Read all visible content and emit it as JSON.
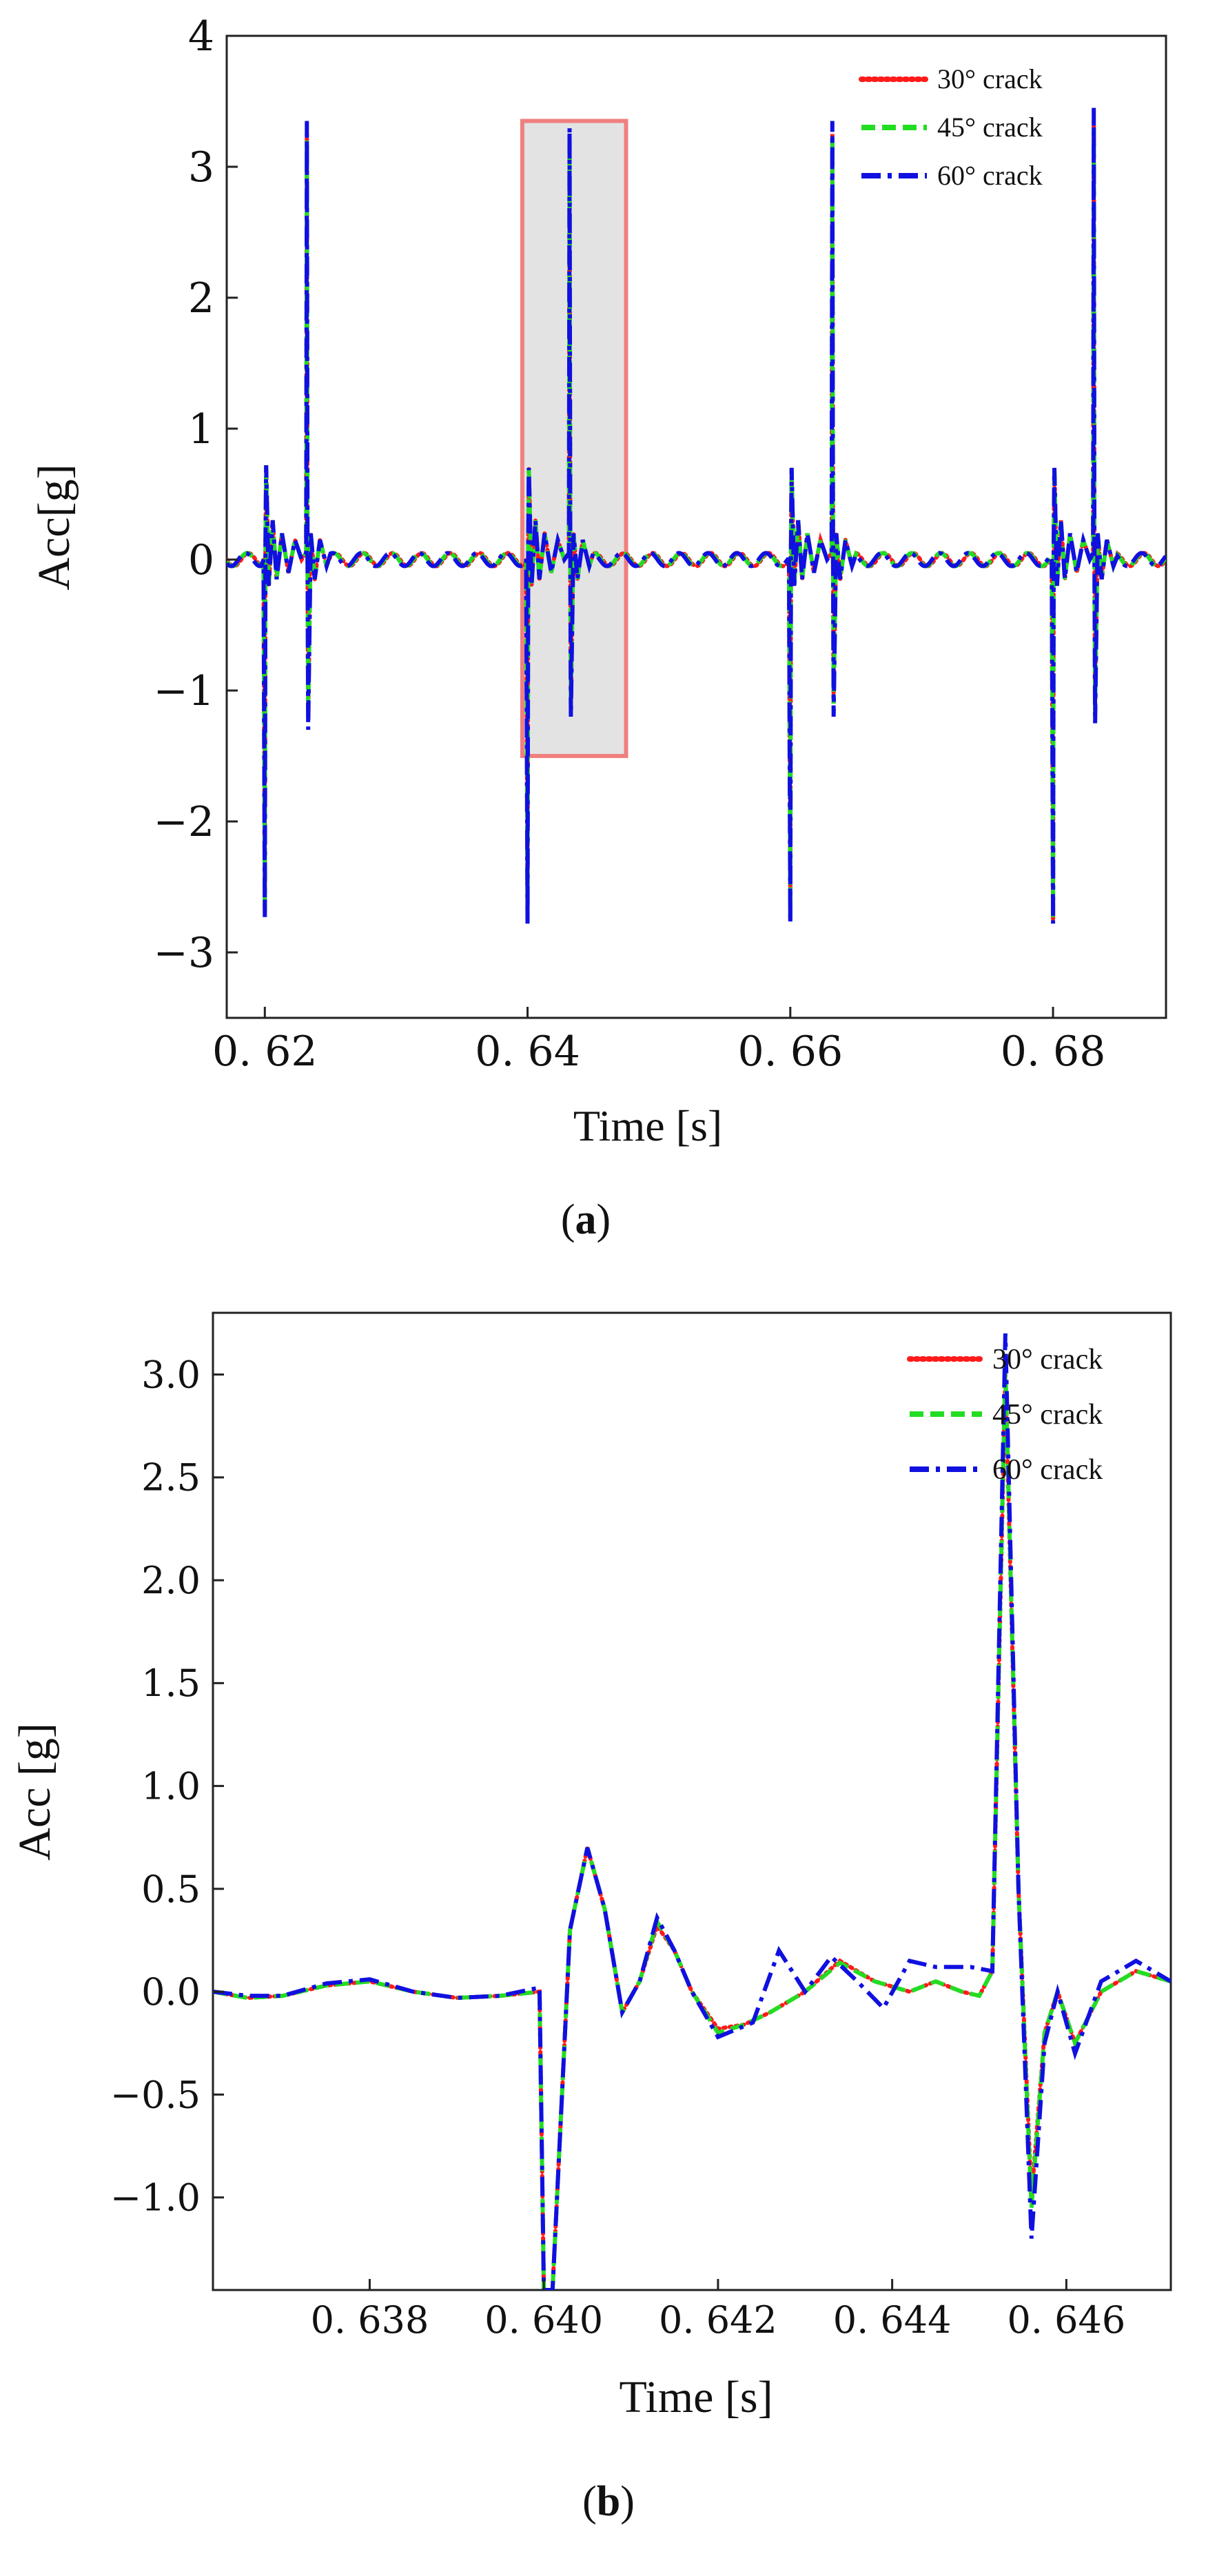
{
  "chart_data": [
    {
      "type": "line",
      "panel": "a",
      "caption_letter": "a",
      "caption_open": "(",
      "caption_close": ")",
      "title": "",
      "xlabel": "Time [s]",
      "ylabel": "Acc[g]",
      "xlim": [
        0.6171,
        0.6886
      ],
      "ylim": [
        -3.5,
        4.0
      ],
      "x_ticks": [
        0.62,
        0.64,
        0.66,
        0.68
      ],
      "x_tick_labels": [
        "0. 62",
        "0. 64",
        "0. 66",
        "0. 68"
      ],
      "y_ticks": [
        -3,
        -2,
        -1,
        0,
        1,
        2,
        3,
        4
      ],
      "y_tick_labels": [
        "−3",
        "−2",
        "−1",
        "0",
        "1",
        "2",
        "3",
        "4"
      ],
      "grid": false,
      "legend_position": "top-right",
      "highlight_region": {
        "x": [
          0.6396,
          0.6475
        ],
        "y": [
          -1.5,
          3.35
        ],
        "fill": "#e3e3e3",
        "stroke": "#f08080"
      },
      "events": [
        {
          "t1": 0.62,
          "t2": 0.6232,
          "neg": -2.7,
          "pre": 0.72,
          "peak": 3.25,
          "neg2": -1.2
        },
        {
          "t1": 0.64,
          "t2": 0.6432,
          "neg": -2.75,
          "pre": 0.7,
          "peak": 3.2,
          "neg2": -1.1
        },
        {
          "t1": 0.66,
          "t2": 0.6632,
          "neg": -2.75,
          "pre": 0.7,
          "peak": 3.25,
          "neg2": -1.1
        },
        {
          "t1": 0.68,
          "t2": 0.6831,
          "neg": -2.75,
          "pre": 0.7,
          "peak": 3.35,
          "neg2": -1.15
        }
      ],
      "series": [
        {
          "name": "30° crack",
          "color": "#ff1a1a",
          "style": "dotted"
        },
        {
          "name": "45° crack",
          "color": "#22dd22",
          "style": "dashed"
        },
        {
          "name": "60° crack",
          "color": "#1010e0",
          "style": "dashdot"
        }
      ]
    },
    {
      "type": "line",
      "panel": "b",
      "caption_letter": "b",
      "caption_open": "(",
      "caption_close": ")",
      "title": "",
      "xlabel": "Time [s]",
      "ylabel": "Acc [g]",
      "xlim": [
        0.6362,
        0.6472
      ],
      "ylim": [
        -1.45,
        3.3
      ],
      "x_ticks": [
        0.638,
        0.64,
        0.642,
        0.644,
        0.646
      ],
      "x_tick_labels": [
        "0. 638",
        "0. 640",
        "0. 642",
        "0. 644",
        "0. 646"
      ],
      "y_ticks": [
        -1.0,
        -0.5,
        0.0,
        0.5,
        1.0,
        1.5,
        2.0,
        2.5,
        3.0
      ],
      "y_tick_labels": [
        "−1.0",
        "−0.5",
        "0.0",
        "0.5",
        "1.0",
        "1.5",
        "2.0",
        "2.5",
        "3.0"
      ],
      "grid": false,
      "legend_position": "top-right",
      "series": [
        {
          "name": "30° crack",
          "color": "#ff1a1a",
          "style": "dotted",
          "points": [
            [
              0.6362,
              0.0
            ],
            [
              0.6366,
              -0.03
            ],
            [
              0.637,
              -0.02
            ],
            [
              0.6375,
              0.03
            ],
            [
              0.638,
              0.05
            ],
            [
              0.6385,
              0.0
            ],
            [
              0.639,
              -0.03
            ],
            [
              0.6395,
              -0.02
            ],
            [
              0.63995,
              0.0
            ],
            [
              0.64,
              -1.45
            ],
            [
              0.6401,
              -1.45
            ],
            [
              0.6403,
              0.3
            ],
            [
              0.6405,
              0.7
            ],
            [
              0.6407,
              0.4
            ],
            [
              0.6409,
              -0.1
            ],
            [
              0.6411,
              0.05
            ],
            [
              0.6413,
              0.32
            ],
            [
              0.6415,
              0.2
            ],
            [
              0.6417,
              0.0
            ],
            [
              0.642,
              -0.18
            ],
            [
              0.6423,
              -0.16
            ],
            [
              0.6426,
              -0.1
            ],
            [
              0.643,
              0.0
            ],
            [
              0.6434,
              0.15
            ],
            [
              0.6438,
              0.05
            ],
            [
              0.6442,
              0.0
            ],
            [
              0.6445,
              0.05
            ],
            [
              0.6448,
              0.0
            ],
            [
              0.645,
              -0.02
            ],
            [
              0.64515,
              0.1
            ],
            [
              0.6453,
              3.0
            ],
            [
              0.64545,
              0.5
            ],
            [
              0.6456,
              -1.0
            ],
            [
              0.64575,
              -0.2
            ],
            [
              0.6459,
              0.0
            ],
            [
              0.6461,
              -0.25
            ],
            [
              0.6464,
              0.0
            ],
            [
              0.6468,
              0.1
            ],
            [
              0.6472,
              0.05
            ]
          ]
        },
        {
          "name": "45° crack",
          "color": "#22dd22",
          "style": "dashed",
          "points": [
            [
              0.6362,
              0.0
            ],
            [
              0.6366,
              -0.03
            ],
            [
              0.637,
              -0.02
            ],
            [
              0.6375,
              0.03
            ],
            [
              0.638,
              0.05
            ],
            [
              0.6385,
              0.0
            ],
            [
              0.639,
              -0.03
            ],
            [
              0.6395,
              -0.02
            ],
            [
              0.63995,
              0.0
            ],
            [
              0.64,
              -1.45
            ],
            [
              0.6401,
              -1.45
            ],
            [
              0.6403,
              0.3
            ],
            [
              0.6405,
              0.7
            ],
            [
              0.6407,
              0.4
            ],
            [
              0.6409,
              -0.1
            ],
            [
              0.6411,
              0.05
            ],
            [
              0.6413,
              0.34
            ],
            [
              0.6415,
              0.2
            ],
            [
              0.6417,
              0.0
            ],
            [
              0.642,
              -0.2
            ],
            [
              0.6423,
              -0.16
            ],
            [
              0.6426,
              -0.1
            ],
            [
              0.643,
              0.0
            ],
            [
              0.6434,
              0.14
            ],
            [
              0.6438,
              0.05
            ],
            [
              0.6442,
              0.0
            ],
            [
              0.6445,
              0.05
            ],
            [
              0.6448,
              0.0
            ],
            [
              0.645,
              -0.02
            ],
            [
              0.64515,
              0.1
            ],
            [
              0.6453,
              3.05
            ],
            [
              0.64545,
              0.5
            ],
            [
              0.6456,
              -1.05
            ],
            [
              0.64575,
              -0.2
            ],
            [
              0.6459,
              0.0
            ],
            [
              0.6461,
              -0.25
            ],
            [
              0.6464,
              0.0
            ],
            [
              0.6468,
              0.1
            ],
            [
              0.6472,
              0.05
            ]
          ]
        },
        {
          "name": "60° crack",
          "color": "#1010e0",
          "style": "dashdot",
          "points": [
            [
              0.6362,
              0.0
            ],
            [
              0.6366,
              -0.02
            ],
            [
              0.637,
              -0.02
            ],
            [
              0.6375,
              0.04
            ],
            [
              0.638,
              0.06
            ],
            [
              0.6385,
              0.0
            ],
            [
              0.639,
              -0.03
            ],
            [
              0.6395,
              -0.02
            ],
            [
              0.63995,
              0.02
            ],
            [
              0.64,
              -1.45
            ],
            [
              0.6401,
              -1.45
            ],
            [
              0.6403,
              0.3
            ],
            [
              0.6405,
              0.7
            ],
            [
              0.6407,
              0.4
            ],
            [
              0.6409,
              -0.1
            ],
            [
              0.6411,
              0.05
            ],
            [
              0.6413,
              0.36
            ],
            [
              0.6415,
              0.2
            ],
            [
              0.6417,
              0.0
            ],
            [
              0.642,
              -0.22
            ],
            [
              0.6424,
              -0.15
            ],
            [
              0.6427,
              0.2
            ],
            [
              0.643,
              0.0
            ],
            [
              0.6433,
              0.17
            ],
            [
              0.6436,
              0.05
            ],
            [
              0.6439,
              -0.08
            ],
            [
              0.6442,
              0.15
            ],
            [
              0.6445,
              0.12
            ],
            [
              0.6449,
              0.12
            ],
            [
              0.64515,
              0.1
            ],
            [
              0.6453,
              3.2
            ],
            [
              0.64545,
              0.5
            ],
            [
              0.6456,
              -1.2
            ],
            [
              0.64575,
              -0.25
            ],
            [
              0.6459,
              0.0
            ],
            [
              0.6461,
              -0.3
            ],
            [
              0.6464,
              0.05
            ],
            [
              0.6468,
              0.15
            ],
            [
              0.6472,
              0.05
            ]
          ]
        }
      ]
    }
  ]
}
